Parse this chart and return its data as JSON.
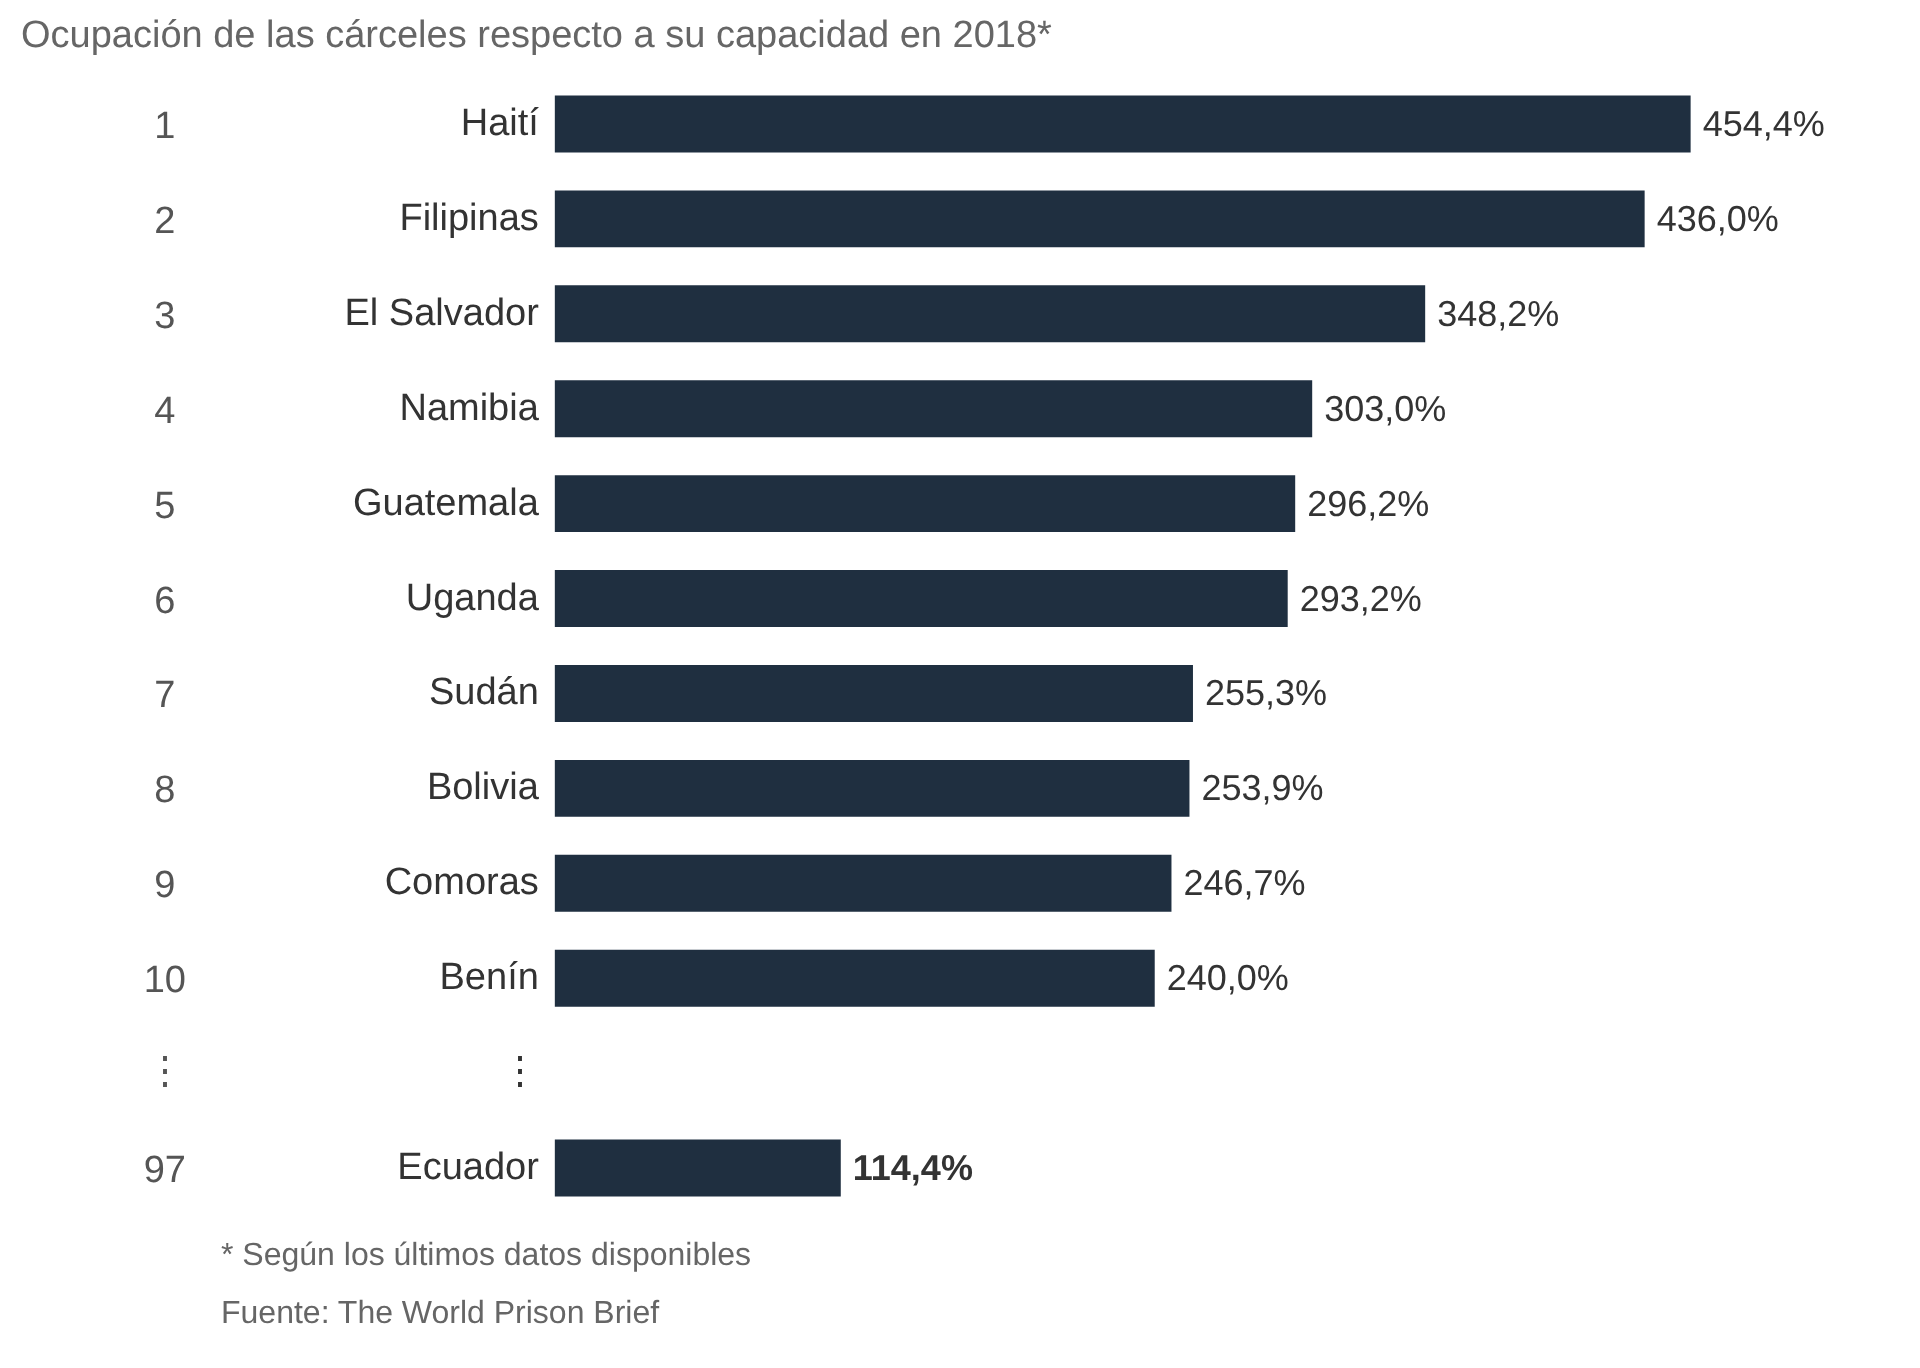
{
  "chart_data": {
    "type": "bar",
    "orientation": "horizontal",
    "title": "Ocupación de las cárceles respecto a su capacidad en 2018*",
    "categories": [
      "Haití",
      "Filipinas",
      "El Salvador",
      "Namibia",
      "Guatemala",
      "Uganda",
      "Sudán",
      "Bolivia",
      "Comoras",
      "Benín",
      "⋮",
      "Ecuador"
    ],
    "values": [
      454.4,
      436.0,
      348.2,
      303.0,
      296.2,
      293.2,
      255.3,
      253.9,
      246.7,
      240.0,
      null,
      114.4
    ],
    "value_labels": [
      "454,4%",
      "436,0%",
      "348,2%",
      "303,0%",
      "296,2%",
      "293,2%",
      "255,3%",
      "253,9%",
      "246,7%",
      "240,0%",
      null,
      "114,4%"
    ],
    "color": "#1f2f40",
    "annotations": [
      "1",
      "2",
      "3",
      "4",
      "5",
      "6",
      "7",
      "8",
      "9",
      "10",
      "⋮",
      "97",
      "* Según los últimos datos disponibles",
      "Fuente: The World Prison Brief"
    ],
    "grid": false
  }
}
